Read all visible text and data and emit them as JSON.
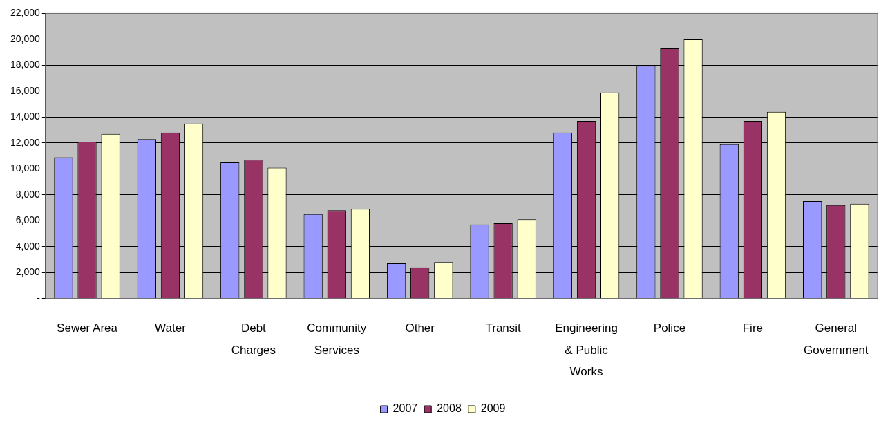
{
  "chart_data": {
    "type": "bar",
    "categories": [
      "Sewer Area",
      "Water",
      "Debt Charges",
      "Community Services",
      "Other",
      "Transit",
      "Engineering & Public Works",
      "Police",
      "Fire",
      "General Government"
    ],
    "series": [
      {
        "name": "2007",
        "color": "#9999ff",
        "values": [
          10900,
          12300,
          10500,
          6500,
          2700,
          5700,
          12800,
          17950,
          11900,
          7500
        ]
      },
      {
        "name": "2008",
        "color": "#993366",
        "values": [
          12100,
          12800,
          10700,
          6800,
          2400,
          5800,
          13700,
          19300,
          13700,
          7200
        ]
      },
      {
        "name": "2009",
        "color": "#ffffcc",
        "values": [
          12700,
          13500,
          10100,
          6900,
          2800,
          6100,
          15900,
          20000,
          14400,
          7300
        ]
      }
    ],
    "ylim": [
      0,
      22000
    ],
    "yticks": [
      {
        "value": 0,
        "label": "-"
      },
      {
        "value": 2000,
        "label": "2,000"
      },
      {
        "value": 4000,
        "label": "4,000"
      },
      {
        "value": 6000,
        "label": "6,000"
      },
      {
        "value": 8000,
        "label": "8,000"
      },
      {
        "value": 10000,
        "label": "10,000"
      },
      {
        "value": 12000,
        "label": "12,000"
      },
      {
        "value": 14000,
        "label": "14,000"
      },
      {
        "value": 16000,
        "label": "16,000"
      },
      {
        "value": 18000,
        "label": "18,000"
      },
      {
        "value": 20000,
        "label": "20,000"
      },
      {
        "value": 22000,
        "label": "22,000"
      }
    ],
    "grid": "y",
    "legend": "bottom"
  }
}
